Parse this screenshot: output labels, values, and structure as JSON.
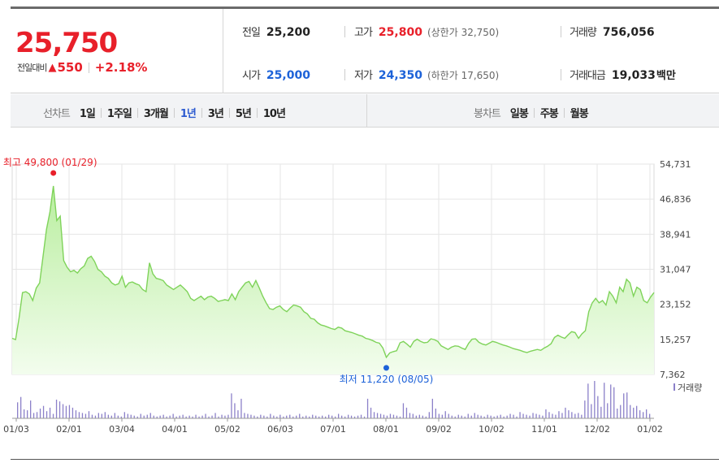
{
  "quote": {
    "price": "25,750",
    "change_label": "전일대비",
    "change_arrow": "▲",
    "change_amount": "550",
    "change_percent": "+2.18%",
    "prev_close": {
      "label": "전일",
      "value": "25,200"
    },
    "high": {
      "label": "고가",
      "value": "25,800",
      "sub": "(상한가 32,750)"
    },
    "volume": {
      "label": "거래량",
      "value": "756,056"
    },
    "open": {
      "label": "시가",
      "value": "25,000"
    },
    "low": {
      "label": "저가",
      "value": "24,350",
      "sub": "(하한가 17,650)"
    },
    "amount": {
      "label": "거래대금",
      "value": "19,033",
      "unit": "백만"
    }
  },
  "toolbar": {
    "line_title": "선차트",
    "periods": [
      "1일",
      "1주일",
      "3개월",
      "1년",
      "3년",
      "5년",
      "10년"
    ],
    "active_period": "1년",
    "candle_title": "봉차트",
    "candles": [
      "일봉",
      "주봉",
      "월봉"
    ]
  },
  "colors": {
    "up": "#e8202a",
    "down": "#1d62d8",
    "line": "#7fd35a",
    "fill": "#d6f5c6",
    "volume": "#8b80c9"
  },
  "chart_data": {
    "type": "area",
    "y_ticks": [
      "54,731",
      "46,836",
      "38,941",
      "31,047",
      "23,152",
      "15,257",
      "7,362"
    ],
    "ylim": [
      7362,
      54731
    ],
    "x_labels": [
      "01/03",
      "02/01",
      "03/04",
      "04/01",
      "05/02",
      "06/03",
      "07/01",
      "08/01",
      "09/02",
      "10/02",
      "11/01",
      "12/02",
      "01/02"
    ],
    "price_series": [
      15500,
      15200,
      20000,
      25800,
      26000,
      25500,
      24000,
      26800,
      28000,
      34000,
      40000,
      44000,
      49800,
      42000,
      43000,
      33000,
      31500,
      30500,
      30800,
      30200,
      31200,
      31800,
      33500,
      34000,
      32800,
      31000,
      30500,
      29500,
      29000,
      28000,
      27500,
      27800,
      29500,
      27000,
      28000,
      28200,
      27800,
      27500,
      26500,
      26000,
      32500,
      30000,
      29000,
      28800,
      28500,
      27500,
      27000,
      26500,
      27000,
      27500,
      26800,
      26000,
      24500,
      24000,
      24500,
      25000,
      24200,
      24800,
      25000,
      24500,
      23800,
      24000,
      24200,
      24000,
      25500,
      24200,
      26000,
      27000,
      28000,
      28300,
      27000,
      28500,
      26800,
      25000,
      23500,
      22200,
      22000,
      22500,
      22800,
      22000,
      21500,
      22300,
      23000,
      22800,
      22500,
      21500,
      21000,
      20000,
      19800,
      19000,
      18500,
      18300,
      18000,
      17700,
      17500,
      18000,
      17800,
      17200,
      17000,
      16800,
      16500,
      16200,
      16000,
      15500,
      15300,
      15000,
      14600,
      14400,
      13300,
      11220,
      12200,
      12500,
      12700,
      14500,
      14800,
      14200,
      13500,
      14800,
      15300,
      14800,
      14500,
      14600,
      15400,
      15200,
      14800,
      13800,
      13400,
      13000,
      13500,
      13800,
      13700,
      13300,
      13000,
      14400,
      15300,
      15400,
      14600,
      14200,
      14000,
      14400,
      14800,
      14600,
      14300,
      14000,
      13800,
      13500,
      13200,
      13000,
      12800,
      12500,
      12300,
      12600,
      12800,
      13000,
      12800,
      13300,
      13700,
      14300,
      15700,
      16200,
      15800,
      15500,
      16300,
      17000,
      16800,
      15500,
      16500,
      17200,
      21500,
      23500,
      24500,
      23500,
      24000,
      23000,
      26000,
      25000,
      23500,
      27000,
      26000,
      28800,
      28000,
      25000,
      27000,
      26500,
      24000,
      23500,
      24800,
      25800
    ],
    "volume_series": [
      36,
      48,
      20,
      18,
      40,
      12,
      14,
      22,
      28,
      16,
      24,
      10,
      42,
      38,
      32,
      28,
      30,
      24,
      18,
      14,
      12,
      10,
      16,
      8,
      6,
      12,
      10,
      14,
      8,
      6,
      12,
      6,
      4,
      14,
      10,
      8,
      6,
      4,
      10,
      6,
      8,
      12,
      6,
      4,
      6,
      8,
      4,
      6,
      10,
      4,
      6,
      8,
      4,
      6,
      4,
      8,
      4,
      6,
      10,
      4,
      6,
      12,
      4,
      8,
      6,
      8,
      56,
      34,
      18,
      44,
      12,
      10,
      8,
      6,
      4,
      8,
      6,
      4,
      10,
      6,
      4,
      8,
      4,
      6,
      8,
      4,
      6,
      10,
      4,
      6,
      4,
      8,
      6,
      4,
      6,
      4,
      8,
      6,
      4,
      10,
      6,
      4,
      8,
      6,
      4,
      6,
      8,
      4,
      44,
      24,
      14,
      12,
      10,
      8,
      6,
      10,
      8,
      6,
      4,
      34,
      24,
      12,
      10,
      6,
      8,
      6,
      4,
      14,
      44,
      22,
      10,
      8,
      16,
      10,
      6,
      4,
      8,
      6,
      4,
      10,
      6,
      12,
      8,
      6,
      4,
      8,
      6,
      4,
      6,
      8,
      4,
      6,
      10,
      8,
      4,
      14,
      10,
      8,
      6,
      12,
      10,
      8,
      6,
      20,
      14,
      10,
      8,
      16,
      12,
      24,
      18,
      14,
      10,
      12,
      8,
      40,
      78,
      32,
      84,
      50,
      26,
      80,
      34,
      76,
      70,
      22,
      30,
      56,
      58,
      30,
      24,
      28,
      18,
      14,
      20,
      10
    ],
    "high_marker": {
      "label": "최고 49,800 (01/29)",
      "value": 49800
    },
    "low_marker": {
      "label": "최저 11,220 (08/05)",
      "value": 11220
    },
    "volume_legend": "거래량",
    "grid": true
  }
}
